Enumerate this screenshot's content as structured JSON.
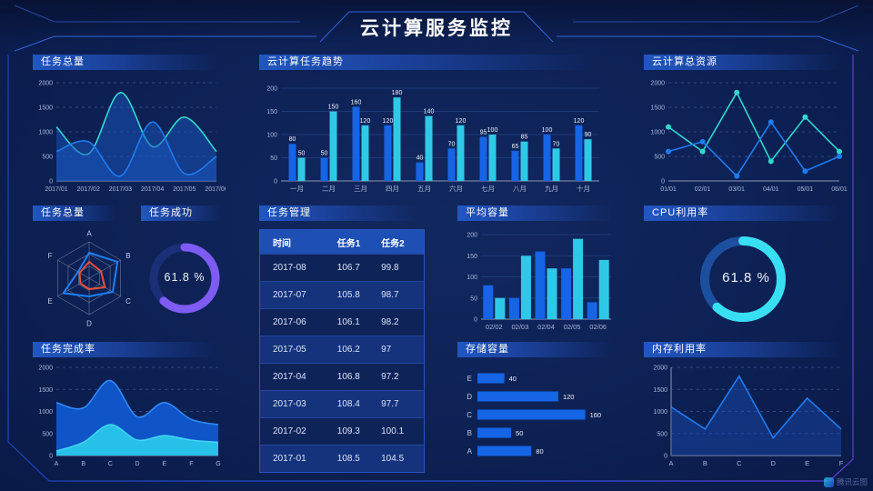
{
  "header": {
    "title": "云计算服务监控"
  },
  "watermark": {
    "label": "腾讯云图"
  },
  "panels": {
    "task_total_area": {
      "title": "任务总量"
    },
    "task_trend": {
      "title": "云计算任务趋势"
    },
    "total_resources": {
      "title": "云计算总资源"
    },
    "task_radar": {
      "title": "任务总量"
    },
    "task_success": {
      "title": "任务成功",
      "value": "61.8 %"
    },
    "task_table": {
      "title": "任务管理",
      "columns": [
        "时间",
        "任务1",
        "任务2"
      ],
      "rows": [
        [
          "2017-08",
          "106.7",
          "99.8"
        ],
        [
          "2017-07",
          "105.8",
          "98.7"
        ],
        [
          "2017-06",
          "106.1",
          "98.2"
        ],
        [
          "2017-05",
          "106.2",
          "97"
        ],
        [
          "2017-04",
          "106.8",
          "97.2"
        ],
        [
          "2017-03",
          "108.4",
          "97.7"
        ],
        [
          "2017-02",
          "109.3",
          "100.1"
        ],
        [
          "2017-01",
          "108.5",
          "104.5"
        ]
      ]
    },
    "avg_capacity": {
      "title": "平均容量"
    },
    "cpu_usage": {
      "title": "CPU利用率",
      "value": "61.8 %"
    },
    "task_completion": {
      "title": "任务完成率"
    },
    "storage": {
      "title": "存储容量"
    },
    "memory": {
      "title": "内存利用率"
    }
  },
  "colors": {
    "bar_blue": "#1565e6",
    "bar_cyan": "#2fc9e8",
    "line_cyan": "#32d8cd",
    "line_blue": "#1f7bf0",
    "gauge_purple": "#7e5bf2",
    "gauge_cyan": "#38dff2",
    "radar_blue": "#1e7ff2",
    "radar_red": "#e8503a"
  },
  "chart_data": [
    {
      "id": "task-total-area",
      "type": "smooth_area",
      "title": "任务总量",
      "x": [
        "2017/01",
        "2017/02",
        "2017/03",
        "2017/04",
        "2017/05",
        "2017/06"
      ],
      "series": [
        {
          "name": "series-cyan",
          "color": "#32d8cd",
          "fill": "rgba(24,86,190,0.50)",
          "values": [
            1100,
            550,
            1800,
            700,
            1300,
            600
          ]
        },
        {
          "name": "series-blue",
          "color": "#1f7bf0",
          "fill": "rgba(24,86,190,0.50)",
          "values": [
            600,
            800,
            100,
            1200,
            150,
            500
          ]
        }
      ],
      "ylim": [
        0,
        2000
      ],
      "yticks": [
        0,
        500,
        1000,
        1500,
        2000
      ],
      "grid_dash": true,
      "legend": "none"
    },
    {
      "id": "task-trend",
      "type": "grouped_bar",
      "title": "云计算任务趋势",
      "categories": [
        "一月",
        "二月",
        "三月",
        "四月",
        "五月",
        "六月",
        "七月",
        "八月",
        "九月",
        "十月"
      ],
      "series": [
        {
          "name": "series-blue",
          "color": "#1565e6",
          "values": [
            80,
            50,
            160,
            120,
            40,
            70,
            95,
            65,
            100,
            120
          ]
        },
        {
          "name": "series-cyan",
          "color": "#2fc9e8",
          "values": [
            50,
            150,
            120,
            180,
            140,
            120,
            100,
            85,
            70,
            90
          ]
        }
      ],
      "ylim": [
        0,
        200
      ],
      "yticks": [
        0,
        50,
        100,
        150,
        200
      ],
      "show_labels": true,
      "grid_dash": false,
      "legend": "none"
    },
    {
      "id": "total-resources",
      "type": "line",
      "title": "云计算总资源",
      "x": [
        "01/01",
        "02/01",
        "03/01",
        "04/01",
        "05/01",
        "06/01"
      ],
      "series": [
        {
          "name": "series-cyan",
          "color": "#32d8cd",
          "values": [
            1100,
            600,
            1800,
            400,
            1300,
            600
          ]
        },
        {
          "name": "series-blue",
          "color": "#1f7bf0",
          "values": [
            600,
            800,
            100,
            1200,
            200,
            500
          ]
        }
      ],
      "ylim": [
        0,
        2000
      ],
      "yticks": [
        0,
        500,
        1000,
        1500,
        2000
      ],
      "markers": true,
      "grid_dash": true,
      "legend": "none"
    },
    {
      "id": "task-radar",
      "type": "radar",
      "title": "任务总量",
      "axes": [
        "A",
        "B",
        "C",
        "D",
        "E",
        "F"
      ],
      "max": 100,
      "series": [
        {
          "name": "radar-blue",
          "color": "#1e7ff2",
          "values": [
            70,
            90,
            75,
            50,
            82,
            35
          ]
        },
        {
          "name": "radar-red",
          "color": "#e8503a",
          "values": [
            45,
            38,
            50,
            30,
            28,
            30
          ]
        }
      ]
    },
    {
      "id": "task-success-gauge",
      "type": "donut",
      "title": "任务成功",
      "value": 61.8,
      "label": "61.8 %",
      "color": "#7e5bf2",
      "track": "#1a2f78"
    },
    {
      "id": "avg-capacity",
      "type": "grouped_bar",
      "title": "平均容量",
      "categories": [
        "02/02",
        "02/03",
        "02/04",
        "02/05",
        "02/06"
      ],
      "series": [
        {
          "name": "series-blue",
          "color": "#1565e6",
          "values": [
            80,
            50,
            160,
            120,
            40
          ]
        },
        {
          "name": "series-cyan",
          "color": "#2fc9e8",
          "values": [
            50,
            150,
            120,
            190,
            140
          ]
        }
      ],
      "ylim": [
        0,
        200
      ],
      "yticks": [
        0,
        50,
        100,
        150,
        200
      ],
      "show_labels": false,
      "grid_dash": false,
      "legend": "none"
    },
    {
      "id": "cpu-gauge",
      "type": "donut",
      "title": "CPU利用率",
      "value": 61.8,
      "label": "61.8 %",
      "color": "#38dff2",
      "track": "#1c4f9e"
    },
    {
      "id": "task-completion",
      "type": "smooth_area",
      "title": "任务完成率",
      "x": [
        "A",
        "B",
        "C",
        "D",
        "E",
        "F",
        "G"
      ],
      "series": [
        {
          "name": "area-blue",
          "color": "#2e8bf5",
          "fill": "#0f55c8",
          "values": [
            1200,
            1080,
            1700,
            880,
            1200,
            820,
            700
          ]
        },
        {
          "name": "area-cyan",
          "color": "#3fd6f2",
          "fill": "#27c0e8",
          "values": [
            100,
            300,
            700,
            350,
            450,
            350,
            300
          ]
        }
      ],
      "ylim": [
        0,
        2000
      ],
      "yticks": [
        0,
        500,
        1000,
        1500,
        2000
      ],
      "grid_dash": true,
      "legend": "none"
    },
    {
      "id": "storage",
      "type": "hbar",
      "title": "存储容量",
      "categories": [
        "E",
        "D",
        "C",
        "B",
        "A"
      ],
      "values": [
        40,
        120,
        160,
        50,
        80
      ],
      "xmax": 170,
      "color": "#1565e6",
      "show_labels": true
    },
    {
      "id": "memory",
      "type": "line_area",
      "title": "内存利用率",
      "x": [
        "A",
        "B",
        "C",
        "D",
        "E",
        "F"
      ],
      "values": [
        1100,
        600,
        1800,
        400,
        1300,
        600
      ],
      "color": "#1f7bf0",
      "fill": "rgba(26,76,180,0.45)",
      "ylim": [
        0,
        2000
      ],
      "yticks": [
        0,
        500,
        1000,
        1500,
        2000
      ],
      "grid_dash": true
    }
  ]
}
